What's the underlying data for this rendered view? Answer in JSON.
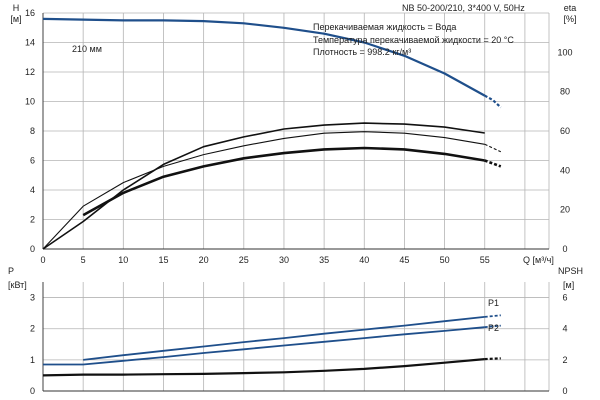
{
  "chart_data": [
    {
      "type": "line",
      "title": "NB 50-200/210, 3*400 V, 50Hz",
      "annotations": [
        "Перекачиваемая жидкость = Вода",
        "Температура перекачиваемой жидкости = 20 °C",
        "Плотность = 998.2 кг/м³"
      ],
      "xlabel": "Q [м³/ч]",
      "xlim": [
        0,
        63
      ],
      "x_ticks": [
        "0",
        "5",
        "10",
        "15",
        "20",
        "25",
        "30",
        "35",
        "40",
        "45",
        "50",
        "55"
      ],
      "grid": true,
      "left_axis": {
        "label": "H",
        "unit": "[м]",
        "ylim": [
          0,
          16
        ],
        "ticks": [
          "0",
          "2",
          "4",
          "6",
          "8",
          "10",
          "12",
          "14",
          "16"
        ]
      },
      "right_axis": {
        "label": "eta",
        "unit": "[%]",
        "ylim": [
          0,
          120
        ],
        "ticks": [
          "0",
          "20",
          "40",
          "60",
          "80",
          "100"
        ]
      },
      "series": [
        {
          "name": "210 мм",
          "axis": "left",
          "color": "#1f4f8b",
          "points": [
            [
              0,
              15.6
            ],
            [
              5,
              15.55
            ],
            [
              10,
              15.5
            ],
            [
              15,
              15.5
            ],
            [
              20,
              15.45
            ],
            [
              25,
              15.3
            ],
            [
              30,
              15.0
            ],
            [
              35,
              14.6
            ],
            [
              40,
              14.0
            ],
            [
              45,
              13.1
            ],
            [
              50,
              11.9
            ],
            [
              55,
              10.4
            ]
          ],
          "extension": [
            [
              55,
              10.4
            ],
            [
              56,
              10.1
            ],
            [
              57,
              9.6
            ]
          ]
        },
        {
          "axis": "left",
          "color": "#111111",
          "points": [
            [
              0,
              0
            ],
            [
              5,
              2.9
            ],
            [
              10,
              4.5
            ],
            [
              15,
              5.6
            ],
            [
              20,
              6.4
            ],
            [
              25,
              7.0
            ],
            [
              30,
              7.5
            ],
            [
              35,
              7.85
            ],
            [
              40,
              7.95
            ],
            [
              45,
              7.85
            ],
            [
              50,
              7.55
            ],
            [
              55,
              7.1
            ]
          ],
          "extension": [
            [
              55,
              7.1
            ],
            [
              57,
              6.6
            ]
          ]
        },
        {
          "axis": "left",
          "color": "#111111",
          "points": [
            [
              5,
              2.3
            ],
            [
              10,
              3.8
            ],
            [
              15,
              4.9
            ],
            [
              20,
              5.6
            ],
            [
              25,
              6.15
            ],
            [
              30,
              6.5
            ],
            [
              35,
              6.75
            ],
            [
              40,
              6.85
            ],
            [
              45,
              6.75
            ],
            [
              50,
              6.45
            ],
            [
              55,
              6.0
            ]
          ],
          "extension": [
            [
              55,
              6.0
            ],
            [
              57,
              5.6
            ]
          ]
        },
        {
          "axis": "right",
          "color": "#111111",
          "points": [
            [
              0,
              0
            ],
            [
              5,
              14
            ],
            [
              10,
              30
            ],
            [
              15,
              43
            ],
            [
              20,
              52
            ],
            [
              25,
              57
            ],
            [
              30,
              61
            ],
            [
              35,
              63
            ],
            [
              40,
              64
            ],
            [
              45,
              63.5
            ],
            [
              50,
              62
            ],
            [
              55,
              59
            ]
          ]
        }
      ]
    },
    {
      "type": "line",
      "xlim": [
        0,
        63
      ],
      "grid": true,
      "left_axis": {
        "label": "P",
        "unit": "[кВт]",
        "ylim": [
          0,
          3.5
        ],
        "ticks": [
          "0",
          "1",
          "2",
          "3"
        ]
      },
      "right_axis": {
        "label": "NPSH",
        "unit": "[м]",
        "ylim": [
          0,
          7
        ],
        "ticks": [
          "0",
          "2",
          "4",
          "6"
        ]
      },
      "series": [
        {
          "name": "P1",
          "axis": "left",
          "color": "#1f4f8b",
          "points": [
            [
              5,
              1.0
            ],
            [
              10,
              1.15
            ],
            [
              15,
              1.29
            ],
            [
              20,
              1.43
            ],
            [
              25,
              1.57
            ],
            [
              30,
              1.7
            ],
            [
              35,
              1.84
            ],
            [
              40,
              1.97
            ],
            [
              45,
              2.1
            ],
            [
              50,
              2.24
            ],
            [
              55,
              2.38
            ]
          ],
          "extension": [
            [
              55,
              2.38
            ],
            [
              57,
              2.43
            ]
          ]
        },
        {
          "name": "P2",
          "axis": "left",
          "color": "#1f4f8b",
          "points": [
            [
              0,
              0.85
            ],
            [
              5,
              0.85
            ],
            [
              10,
              0.97
            ],
            [
              15,
              1.09
            ],
            [
              20,
              1.22
            ],
            [
              25,
              1.34
            ],
            [
              30,
              1.46
            ],
            [
              35,
              1.58
            ],
            [
              40,
              1.7
            ],
            [
              45,
              1.82
            ],
            [
              50,
              1.93
            ],
            [
              55,
              2.05
            ]
          ],
          "extension": [
            [
              55,
              2.05
            ],
            [
              57,
              2.1
            ]
          ]
        },
        {
          "axis": "right",
          "color": "#111111",
          "points": [
            [
              0,
              1.0
            ],
            [
              5,
              1.05
            ],
            [
              10,
              1.05
            ],
            [
              15,
              1.08
            ],
            [
              20,
              1.1
            ],
            [
              25,
              1.15
            ],
            [
              30,
              1.2
            ],
            [
              35,
              1.3
            ],
            [
              40,
              1.42
            ],
            [
              45,
              1.6
            ],
            [
              50,
              1.82
            ],
            [
              55,
              2.05
            ]
          ],
          "extension": [
            [
              55,
              2.05
            ],
            [
              57,
              2.1
            ]
          ]
        }
      ]
    }
  ]
}
